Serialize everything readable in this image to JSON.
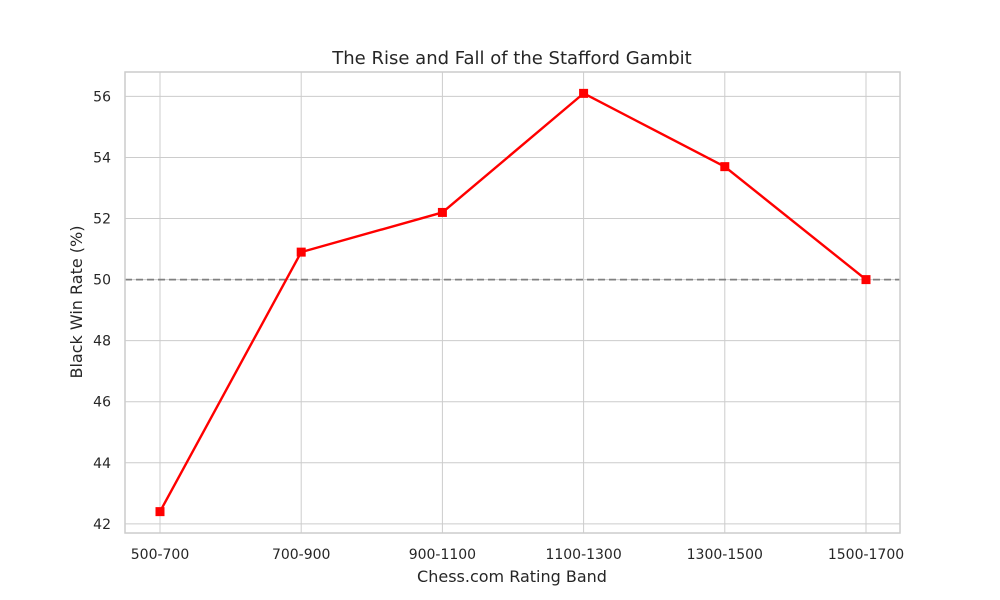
{
  "chart_data": {
    "type": "line",
    "title": "The Rise and Fall of the Stafford Gambit",
    "xlabel": "Chess.com Rating Band",
    "ylabel": "Black Win Rate (%)",
    "categories": [
      "500-700",
      "700-900",
      "900-1100",
      "1100-1300",
      "1300-1500",
      "1500-1700"
    ],
    "series": [
      {
        "values": [
          42.4,
          50.9,
          52.2,
          56.1,
          53.7,
          50.0
        ],
        "color": "#ff0000",
        "marker": "square"
      }
    ],
    "yticks": [
      42,
      44,
      46,
      48,
      50,
      52,
      54,
      56
    ],
    "ylim": [
      41.7,
      56.8
    ],
    "reference_line": {
      "y": 50,
      "style": "dashed",
      "color": "#808080"
    },
    "grid": true,
    "legend": "none"
  }
}
